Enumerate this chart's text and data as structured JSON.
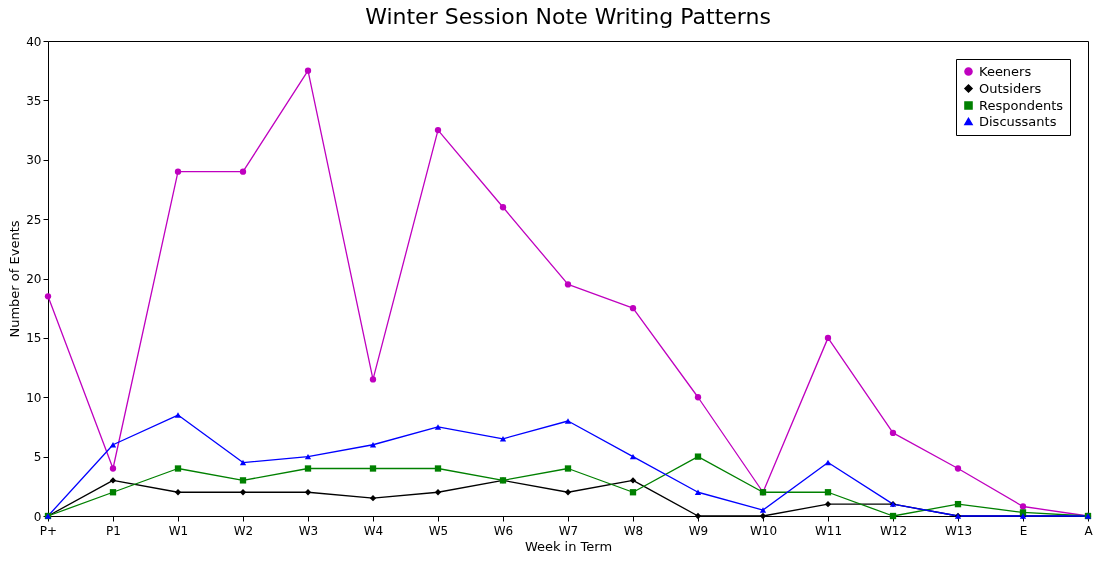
{
  "chart_data": {
    "type": "line",
    "title": "Winter Session Note Writing Patterns",
    "xlabel": "Week in Term",
    "ylabel": "Number of Events",
    "categories": [
      "P+",
      "P1",
      "W1",
      "W2",
      "W3",
      "W4",
      "W5",
      "W6",
      "W7",
      "W8",
      "W9",
      "W10",
      "W11",
      "W12",
      "W13",
      "E",
      "A"
    ],
    "series": [
      {
        "name": "Keeners",
        "color": "#bf00bf",
        "marker": "circle",
        "values": [
          18.5,
          4,
          29,
          29,
          37.5,
          11.5,
          32.5,
          26,
          19.5,
          17.5,
          10,
          2,
          15,
          7,
          4,
          0.8,
          0
        ]
      },
      {
        "name": "Outsiders",
        "color": "#000000",
        "marker": "diamond",
        "values": [
          0,
          3,
          2,
          2,
          2,
          1.5,
          2,
          3,
          2,
          3,
          0,
          0,
          1,
          1,
          0,
          0,
          0
        ]
      },
      {
        "name": "Respondents",
        "color": "#008000",
        "marker": "square",
        "values": [
          0,
          2,
          4,
          3,
          4,
          4,
          4,
          3,
          4,
          2,
          5,
          2,
          2,
          0,
          1,
          0.3,
          0
        ]
      },
      {
        "name": "Discussants",
        "color": "#0000ff",
        "marker": "triangle",
        "values": [
          0,
          6,
          8.5,
          4.5,
          5,
          6,
          7.5,
          6.5,
          8,
          5,
          2,
          0.5,
          4.5,
          1,
          0,
          0,
          0
        ]
      }
    ],
    "ylim": [
      0,
      40
    ],
    "yticks": [
      0,
      5,
      10,
      15,
      20,
      25,
      30,
      35,
      40
    ],
    "legend": "top right"
  }
}
